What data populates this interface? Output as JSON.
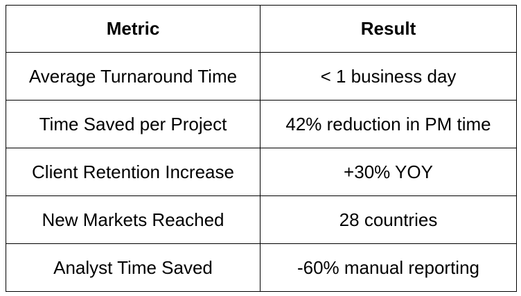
{
  "table": {
    "header": [
      "Metric",
      "Result"
    ],
    "rows": [
      [
        "Average Turnaround Time",
        "< 1 business day"
      ],
      [
        "Time Saved per Project",
        "42% reduction in PM time"
      ],
      [
        "Client Retention Increase",
        "+30% YOY"
      ],
      [
        "New Markets Reached",
        "28 countries"
      ],
      [
        "Analyst Time Saved",
        "-60% manual reporting"
      ]
    ]
  }
}
